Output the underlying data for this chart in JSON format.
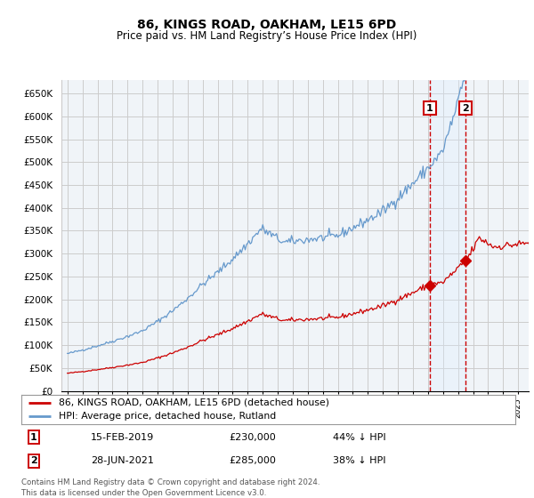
{
  "title": "86, KINGS ROAD, OAKHAM, LE15 6PD",
  "subtitle": "Price paid vs. HM Land Registry’s House Price Index (HPI)",
  "ylim": [
    0,
    680000
  ],
  "yticks": [
    0,
    50000,
    100000,
    150000,
    200000,
    250000,
    300000,
    350000,
    400000,
    450000,
    500000,
    550000,
    600000,
    650000
  ],
  "sale1_date": "15-FEB-2019",
  "sale1_price": 230000,
  "sale1_label": "44% ↓ HPI",
  "sale2_date": "28-JUN-2021",
  "sale2_price": 285000,
  "sale2_label": "38% ↓ HPI",
  "sale1_x": 2019.12,
  "sale2_x": 2021.49,
  "legend_line1": "86, KINGS ROAD, OAKHAM, LE15 6PD (detached house)",
  "legend_line2": "HPI: Average price, detached house, Rutland",
  "footnote": "Contains HM Land Registry data © Crown copyright and database right 2024.\nThis data is licensed under the Open Government Licence v3.0.",
  "line_color_red": "#cc0000",
  "line_color_blue": "#6699cc",
  "bg_color": "#f0f4f8",
  "grid_color": "#cccccc",
  "vline_color": "#cc0000",
  "highlight_color": "#ddeeff",
  "box_color": "#cc0000"
}
